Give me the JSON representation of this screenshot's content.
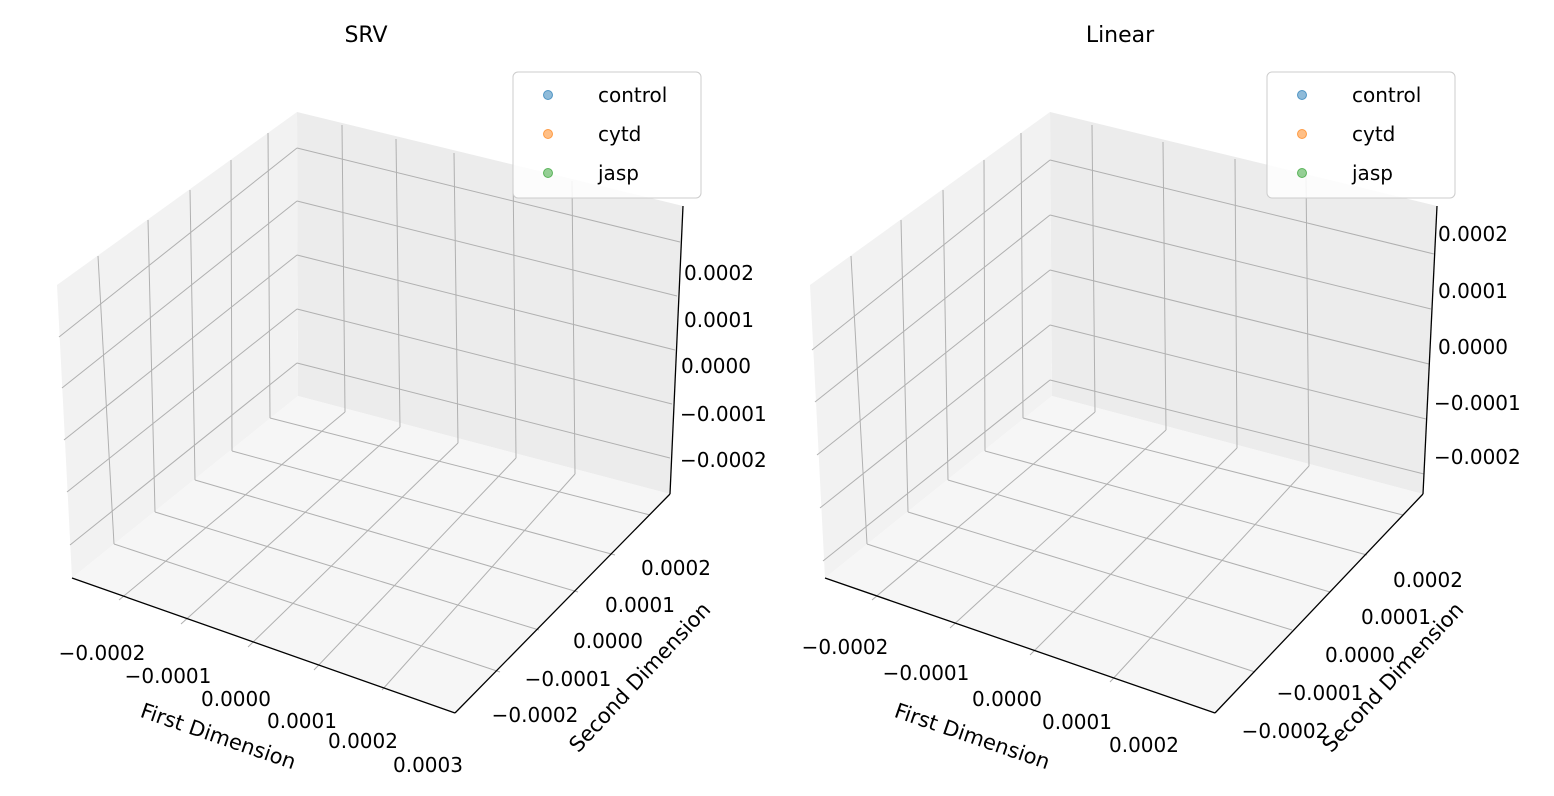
{
  "chart_data": [
    {
      "type": "scatter",
      "projection": "3d",
      "title": "SRV",
      "xlabel": "First Dimension",
      "ylabel": "Second Dimension",
      "zlabel": "",
      "xlim": [
        -0.00025,
        0.0003
      ],
      "ylim": [
        -0.00025,
        0.00025
      ],
      "zlim": [
        -0.00025,
        0.00025
      ],
      "x_ticks": [
        "−0.0002",
        "−0.0001",
        "0.0000",
        "0.0001",
        "0.0002",
        "0.0003"
      ],
      "y_ticks": [
        "−0.0002",
        "−0.0001",
        "0.0000",
        "0.0001",
        "0.0002"
      ],
      "z_ticks": [
        "−0.0002",
        "−0.0001",
        "0.0000",
        "0.0001",
        "0.0002"
      ],
      "grid": true,
      "legend_position": "top-right",
      "series": [
        {
          "name": "control",
          "color": "#1f77b4",
          "points": []
        },
        {
          "name": "cytd",
          "color": "#ff7f0e",
          "points": []
        },
        {
          "name": "jasp",
          "color": "#2ca02c",
          "points": []
        }
      ]
    },
    {
      "type": "scatter",
      "projection": "3d",
      "title": "Linear",
      "xlabel": "First Dimension",
      "ylabel": "Second Dimension",
      "zlabel": "",
      "xlim": [
        -0.00025,
        0.00025
      ],
      "ylim": [
        -0.00025,
        0.00025
      ],
      "zlim": [
        -0.00025,
        0.00025
      ],
      "x_ticks": [
        "−0.0002",
        "−0.0001",
        "0.0000",
        "0.0001",
        "0.0002"
      ],
      "y_ticks": [
        "−0.0002",
        "−0.0001",
        "0.0000",
        "0.0001",
        "0.0002"
      ],
      "z_ticks": [
        "0.0002",
        "0.0001",
        "0.0000",
        "−0.0001",
        "−0.0002"
      ],
      "grid": true,
      "legend_position": "top-right",
      "series": [
        {
          "name": "control",
          "color": "#1f77b4",
          "points": []
        },
        {
          "name": "cytd",
          "color": "#ff7f0e",
          "points": []
        },
        {
          "name": "jasp",
          "color": "#2ca02c",
          "points": []
        }
      ]
    }
  ]
}
